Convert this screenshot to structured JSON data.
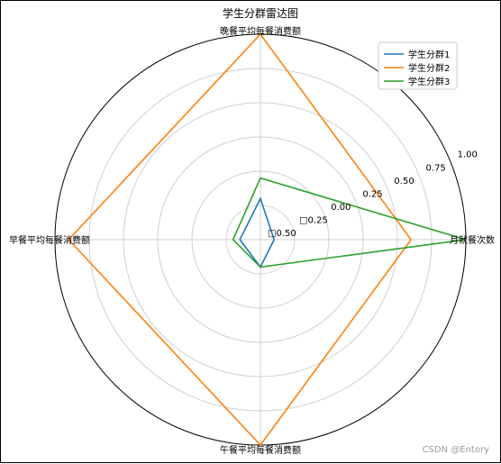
{
  "chart_data": {
    "type": "radar",
    "title": "学生分群雷达图",
    "axes": [
      "月就餐次数",
      "晚餐平均每餐消费额",
      "早餐平均每餐消费额",
      "午餐平均每餐消费额"
    ],
    "radial_ticks": [
      "□0.50",
      "□0.25",
      "0.00",
      "0.25",
      "0.50",
      "0.75",
      "1.00"
    ],
    "rlim": [
      -0.5,
      1.0
    ],
    "grid": true,
    "legend_position": "top-right",
    "series": [
      {
        "name": "学生分群1",
        "color": "#1f77b4",
        "values": [
          -0.4,
          -0.2,
          -0.35,
          -0.3
        ]
      },
      {
        "name": "学生分群2",
        "color": "#ff7f0e",
        "values": [
          0.6,
          1.0,
          0.9,
          1.0
        ]
      },
      {
        "name": "学生分群3",
        "color": "#2ca02c",
        "values": [
          1.0,
          -0.05,
          -0.3,
          -0.3
        ]
      }
    ]
  },
  "watermark": "CSDN @Entory"
}
